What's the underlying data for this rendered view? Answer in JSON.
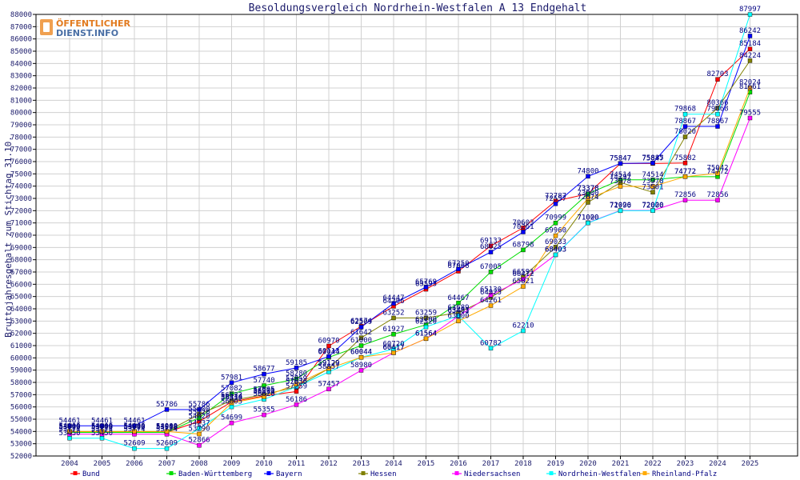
{
  "logo": {
    "line1": "ÖFFENTLICHER",
    "line2": "DIENST.INFO"
  },
  "chart_data": {
    "type": "line",
    "title": "Besoldungsvergleich Nordrhein-Westfalen A 13 Endgehalt",
    "xlabel": "",
    "ylabel": "Bruttojahresgehalt zum Stichtag 31.10.",
    "ylim": [
      52000,
      88000
    ],
    "y_ticks": [
      52000,
      53000,
      54000,
      55000,
      56000,
      57000,
      58000,
      59000,
      60000,
      61000,
      62000,
      63000,
      64000,
      65000,
      66000,
      67000,
      68000,
      69000,
      70000,
      71000,
      72000,
      73000,
      74000,
      75000,
      76000,
      77000,
      78000,
      79000,
      80000,
      81000,
      82000,
      83000,
      84000,
      85000,
      86000,
      87000,
      88000
    ],
    "categories": [
      "2004",
      "2005",
      "2006",
      "2007",
      "2008",
      "2009",
      "2010",
      "2011",
      "2012",
      "2013",
      "2014",
      "2015",
      "2016",
      "2017",
      "2018",
      "2019",
      "2020",
      "2021",
      "2022",
      "2023",
      "2024",
      "2025"
    ],
    "grid": true,
    "legend_position": "bottom",
    "series": [
      {
        "name": "Bund",
        "color": "#ff0000",
        "values": [
          53943,
          53943,
          53943,
          53943,
          54820,
          56414,
          56900,
          57259,
          60970,
          62574,
          64206,
          65593,
          67066,
          69133,
          70603,
          72787,
          73378,
          75847,
          75847,
          75882,
          82703,
          85184
        ]
      },
      {
        "name": "Baden-Württemberg",
        "color": "#00dd00",
        "values": [
          53926,
          53926,
          53926,
          53926,
          55120,
          57082,
          57740,
          58280,
          60044,
          61000,
          61927,
          62700,
          64467,
          67005,
          68798,
          70999,
          73378,
          74514,
          74514,
          74772,
          74772,
          81661
        ]
      },
      {
        "name": "Bayern",
        "color": "#0000ff",
        "values": [
          54461,
          54461,
          54461,
          55786,
          55786,
          57981,
          58677,
          59185,
          60113,
          62509,
          64447,
          65769,
          67250,
          68625,
          70261,
          72557,
          74800,
          75847,
          75885,
          78867,
          78867,
          86242
        ]
      },
      {
        "name": "Hessen",
        "color": "#808000",
        "values": [
          54000,
          54000,
          54000,
          54000,
          55400,
          56522,
          57005,
          57636,
          59129,
          61642,
          63252,
          63259,
          63689,
          64925,
          66591,
          69033,
          72674,
          74297,
          73501,
          78020,
          80366,
          84224
        ]
      },
      {
        "name": "Niedersachsen",
        "color": "#ff00ff",
        "values": [
          53774,
          53774,
          53774,
          53774,
          52866,
          54699,
          55355,
          56186,
          57457,
          58980,
          60417,
          61564,
          63401,
          65130,
          66412,
          68403,
          71020,
          72020,
          72020,
          72856,
          72856,
          79555
        ]
      },
      {
        "name": "Nordrhein-Westfalen",
        "color": "#00ffff",
        "values": [
          53450,
          53450,
          52609,
          52609,
          54237,
          56005,
          56620,
          57636,
          58857,
          60044,
          60720,
          62520,
          63433,
          60782,
          62210,
          68403,
          71000,
          71996,
          72000,
          79868,
          79868,
          87997
        ]
      },
      {
        "name": "Rheinland-Pfalz",
        "color": "#ffaa00",
        "values": [
          54000,
          54000,
          54000,
          54000,
          53790,
          56330,
          56831,
          57859,
          59129,
          60044,
          60417,
          61564,
          63000,
          64261,
          65821,
          69960,
          73000,
          73978,
          73978,
          74772,
          75042,
          82024
        ]
      }
    ]
  }
}
